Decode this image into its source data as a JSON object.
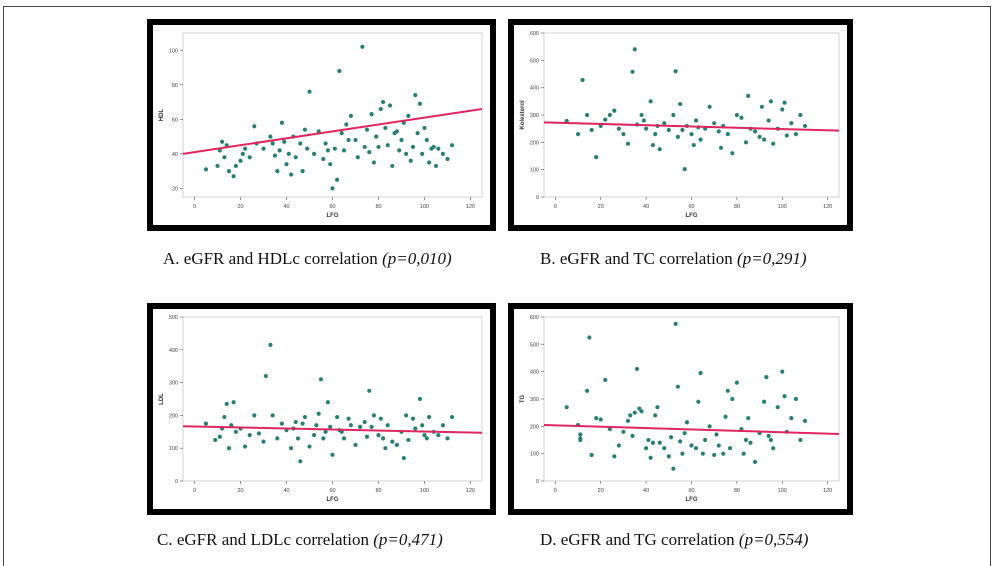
{
  "colors": {
    "point": "#2a7f74",
    "fit": "#e0265e",
    "axis": "#555555"
  },
  "chart_data": [
    {
      "type": "scatter",
      "xlabel": "LFG",
      "ylabel": "HDL",
      "xlim": [
        -5,
        125
      ],
      "ylim": [
        15,
        110
      ],
      "xticks": [
        "0",
        "20",
        "40",
        "60",
        "80",
        "100",
        "120"
      ],
      "xtick_values": [
        0,
        20,
        40,
        60,
        80,
        100,
        120
      ],
      "yticks": [
        "20",
        "40",
        "60",
        "80",
        "100"
      ],
      "ytick_values": [
        20,
        40,
        60,
        80,
        100
      ],
      "fit_line": {
        "x": [
          -5,
          125
        ],
        "y": [
          40,
          66
        ]
      },
      "points": [
        [
          5,
          31
        ],
        [
          10,
          33
        ],
        [
          11,
          42
        ],
        [
          12,
          47
        ],
        [
          13,
          38
        ],
        [
          14,
          45
        ],
        [
          15,
          30
        ],
        [
          17,
          27
        ],
        [
          18,
          33
        ],
        [
          20,
          36
        ],
        [
          21,
          40
        ],
        [
          22,
          43
        ],
        [
          24,
          38
        ],
        [
          26,
          56
        ],
        [
          27,
          46
        ],
        [
          30,
          43
        ],
        [
          33,
          50
        ],
        [
          34,
          46
        ],
        [
          35,
          39
        ],
        [
          36,
          30
        ],
        [
          37,
          42
        ],
        [
          38,
          58
        ],
        [
          39,
          47
        ],
        [
          40,
          34
        ],
        [
          41,
          40
        ],
        [
          42,
          28
        ],
        [
          43,
          50
        ],
        [
          44,
          38
        ],
        [
          46,
          46
        ],
        [
          47,
          30
        ],
        [
          48,
          54
        ],
        [
          49,
          43
        ],
        [
          50,
          76
        ],
        [
          52,
          40
        ],
        [
          54,
          53
        ],
        [
          56,
          37
        ],
        [
          57,
          46
        ],
        [
          58,
          42
        ],
        [
          59,
          34
        ],
        [
          60,
          20
        ],
        [
          61,
          43
        ],
        [
          62,
          25
        ],
        [
          63,
          88
        ],
        [
          64,
          52
        ],
        [
          65,
          42
        ],
        [
          66,
          57
        ],
        [
          67,
          48
        ],
        [
          68,
          62
        ],
        [
          70,
          48
        ],
        [
          71,
          38
        ],
        [
          73,
          102
        ],
        [
          74,
          44
        ],
        [
          75,
          54
        ],
        [
          76,
          41
        ],
        [
          77,
          63
        ],
        [
          78,
          35
        ],
        [
          79,
          50
        ],
        [
          80,
          44
        ],
        [
          81,
          66
        ],
        [
          82,
          70
        ],
        [
          83,
          55
        ],
        [
          84,
          45
        ],
        [
          85,
          68
        ],
        [
          86,
          33
        ],
        [
          87,
          52
        ],
        [
          88,
          53
        ],
        [
          89,
          42
        ],
        [
          90,
          48
        ],
        [
          91,
          58
        ],
        [
          92,
          40
        ],
        [
          93,
          62
        ],
        [
          94,
          36
        ],
        [
          95,
          44
        ],
        [
          96,
          74
        ],
        [
          97,
          52
        ],
        [
          98,
          69
        ],
        [
          99,
          40
        ],
        [
          100,
          55
        ],
        [
          101,
          48
        ],
        [
          102,
          35
        ],
        [
          103,
          43
        ],
        [
          104,
          44
        ],
        [
          105,
          33
        ],
        [
          106,
          43
        ],
        [
          108,
          40
        ],
        [
          110,
          37
        ],
        [
          112,
          45
        ]
      ]
    },
    {
      "type": "scatter",
      "xlabel": "LFG",
      "ylabel": "Kolesterol",
      "xlim": [
        -5,
        125
      ],
      "ylim": [
        0,
        600
      ],
      "xticks": [
        "0",
        "20",
        "40",
        "60",
        "80",
        "100",
        "120"
      ],
      "xtick_values": [
        0,
        20,
        40,
        60,
        80,
        100,
        120
      ],
      "yticks": [
        "0",
        "100",
        "200",
        "300",
        "400",
        "500",
        "600"
      ],
      "ytick_values": [
        0,
        100,
        200,
        300,
        400,
        500,
        600
      ],
      "fit_line": {
        "x": [
          -5,
          125
        ],
        "y": [
          273,
          243
        ]
      },
      "points": [
        [
          5,
          278
        ],
        [
          10,
          230
        ],
        [
          12,
          428
        ],
        [
          14,
          300
        ],
        [
          16,
          245
        ],
        [
          18,
          146
        ],
        [
          20,
          260
        ],
        [
          22,
          283
        ],
        [
          24,
          300
        ],
        [
          26,
          316
        ],
        [
          28,
          250
        ],
        [
          30,
          230
        ],
        [
          32,
          195
        ],
        [
          34,
          458
        ],
        [
          35,
          540
        ],
        [
          36,
          265
        ],
        [
          38,
          300
        ],
        [
          39,
          280
        ],
        [
          40,
          250
        ],
        [
          42,
          350
        ],
        [
          43,
          190
        ],
        [
          44,
          230
        ],
        [
          45,
          260
        ],
        [
          46,
          175
        ],
        [
          48,
          270
        ],
        [
          50,
          245
        ],
        [
          52,
          300
        ],
        [
          53,
          460
        ],
        [
          54,
          220
        ],
        [
          55,
          340
        ],
        [
          56,
          245
        ],
        [
          57,
          102
        ],
        [
          58,
          260
        ],
        [
          60,
          230
        ],
        [
          61,
          190
        ],
        [
          62,
          280
        ],
        [
          63,
          255
        ],
        [
          64,
          210
        ],
        [
          66,
          250
        ],
        [
          68,
          330
        ],
        [
          70,
          270
        ],
        [
          72,
          240
        ],
        [
          73,
          180
        ],
        [
          74,
          260
        ],
        [
          76,
          230
        ],
        [
          78,
          160
        ],
        [
          80,
          300
        ],
        [
          82,
          290
        ],
        [
          84,
          200
        ],
        [
          85,
          370
        ],
        [
          86,
          250
        ],
        [
          88,
          240
        ],
        [
          90,
          220
        ],
        [
          91,
          330
        ],
        [
          92,
          210
        ],
        [
          94,
          280
        ],
        [
          95,
          350
        ],
        [
          96,
          195
        ],
        [
          98,
          250
        ],
        [
          100,
          320
        ],
        [
          101,
          345
        ],
        [
          102,
          225
        ],
        [
          104,
          270
        ],
        [
          106,
          230
        ],
        [
          108,
          300
        ],
        [
          110,
          260
        ]
      ]
    },
    {
      "type": "scatter",
      "xlabel": "LFG",
      "ylabel": "LDL",
      "xlim": [
        -5,
        125
      ],
      "ylim": [
        0,
        500
      ],
      "xticks": [
        "0",
        "20",
        "40",
        "60",
        "80",
        "100",
        "120"
      ],
      "xtick_values": [
        0,
        20,
        40,
        60,
        80,
        100,
        120
      ],
      "yticks": [
        "0",
        "100",
        "200",
        "300",
        "400",
        "500"
      ],
      "ytick_values": [
        0,
        100,
        200,
        300,
        400,
        500
      ],
      "fit_line": {
        "x": [
          -5,
          125
        ],
        "y": [
          167,
          147
        ]
      },
      "points": [
        [
          5,
          175
        ],
        [
          9,
          125
        ],
        [
          11,
          135
        ],
        [
          12,
          160
        ],
        [
          13,
          195
        ],
        [
          14,
          235
        ],
        [
          15,
          100
        ],
        [
          16,
          170
        ],
        [
          17,
          240
        ],
        [
          18,
          150
        ],
        [
          20,
          160
        ],
        [
          22,
          105
        ],
        [
          24,
          140
        ],
        [
          26,
          200
        ],
        [
          28,
          145
        ],
        [
          30,
          120
        ],
        [
          31,
          320
        ],
        [
          33,
          415
        ],
        [
          34,
          200
        ],
        [
          36,
          130
        ],
        [
          38,
          175
        ],
        [
          40,
          155
        ],
        [
          42,
          100
        ],
        [
          43,
          160
        ],
        [
          44,
          180
        ],
        [
          45,
          130
        ],
        [
          46,
          60
        ],
        [
          47,
          175
        ],
        [
          48,
          195
        ],
        [
          50,
          105
        ],
        [
          52,
          140
        ],
        [
          53,
          170
        ],
        [
          54,
          205
        ],
        [
          55,
          310
        ],
        [
          56,
          130
        ],
        [
          57,
          150
        ],
        [
          58,
          240
        ],
        [
          59,
          165
        ],
        [
          60,
          80
        ],
        [
          62,
          195
        ],
        [
          63,
          155
        ],
        [
          64,
          150
        ],
        [
          65,
          130
        ],
        [
          67,
          190
        ],
        [
          68,
          170
        ],
        [
          70,
          110
        ],
        [
          72,
          165
        ],
        [
          74,
          180
        ],
        [
          75,
          135
        ],
        [
          76,
          275
        ],
        [
          77,
          165
        ],
        [
          78,
          200
        ],
        [
          80,
          140
        ],
        [
          81,
          190
        ],
        [
          82,
          130
        ],
        [
          83,
          100
        ],
        [
          84,
          170
        ],
        [
          86,
          120
        ],
        [
          88,
          110
        ],
        [
          90,
          150
        ],
        [
          91,
          70
        ],
        [
          92,
          200
        ],
        [
          93,
          125
        ],
        [
          95,
          190
        ],
        [
          96,
          160
        ],
        [
          98,
          250
        ],
        [
          99,
          170
        ],
        [
          100,
          140
        ],
        [
          101,
          130
        ],
        [
          102,
          195
        ],
        [
          104,
          150
        ],
        [
          106,
          140
        ],
        [
          108,
          170
        ],
        [
          110,
          130
        ],
        [
          112,
          195
        ]
      ]
    },
    {
      "type": "scatter",
      "xlabel": "LFG",
      "ylabel": "TG",
      "xlim": [
        -5,
        125
      ],
      "ylim": [
        0,
        600
      ],
      "xticks": [
        "0",
        "20",
        "40",
        "60",
        "80",
        "100",
        "120"
      ],
      "xtick_values": [
        0,
        20,
        40,
        60,
        80,
        100,
        120
      ],
      "yticks": [
        "0",
        "100",
        "200",
        "300",
        "400",
        "500",
        "600"
      ],
      "ytick_values": [
        0,
        100,
        200,
        300,
        400,
        500,
        600
      ],
      "fit_line": {
        "x": [
          -5,
          125
        ],
        "y": [
          205,
          172
        ]
      },
      "points": [
        [
          5,
          270
        ],
        [
          10,
          205
        ],
        [
          11,
          170
        ],
        [
          11,
          155
        ],
        [
          11,
          150
        ],
        [
          14,
          330
        ],
        [
          15,
          525
        ],
        [
          16,
          95
        ],
        [
          18,
          230
        ],
        [
          20,
          225
        ],
        [
          22,
          370
        ],
        [
          24,
          190
        ],
        [
          26,
          90
        ],
        [
          28,
          130
        ],
        [
          30,
          180
        ],
        [
          32,
          220
        ],
        [
          33,
          240
        ],
        [
          34,
          165
        ],
        [
          35,
          250
        ],
        [
          36,
          410
        ],
        [
          37,
          265
        ],
        [
          38,
          255
        ],
        [
          40,
          120
        ],
        [
          41,
          150
        ],
        [
          42,
          85
        ],
        [
          43,
          140
        ],
        [
          44,
          240
        ],
        [
          45,
          270
        ],
        [
          46,
          140
        ],
        [
          48,
          120
        ],
        [
          50,
          90
        ],
        [
          51,
          160
        ],
        [
          52,
          45
        ],
        [
          53,
          575
        ],
        [
          54,
          345
        ],
        [
          55,
          145
        ],
        [
          56,
          100
        ],
        [
          57,
          175
        ],
        [
          58,
          215
        ],
        [
          60,
          130
        ],
        [
          62,
          120
        ],
        [
          63,
          290
        ],
        [
          64,
          395
        ],
        [
          65,
          100
        ],
        [
          66,
          150
        ],
        [
          68,
          200
        ],
        [
          70,
          95
        ],
        [
          71,
          170
        ],
        [
          72,
          130
        ],
        [
          74,
          100
        ],
        [
          75,
          235
        ],
        [
          76,
          330
        ],
        [
          77,
          120
        ],
        [
          78,
          300
        ],
        [
          80,
          360
        ],
        [
          82,
          190
        ],
        [
          83,
          100
        ],
        [
          84,
          150
        ],
        [
          85,
          230
        ],
        [
          86,
          140
        ],
        [
          88,
          70
        ],
        [
          90,
          175
        ],
        [
          92,
          290
        ],
        [
          93,
          380
        ],
        [
          94,
          165
        ],
        [
          95,
          150
        ],
        [
          96,
          120
        ],
        [
          98,
          270
        ],
        [
          100,
          400
        ],
        [
          101,
          310
        ],
        [
          102,
          180
        ],
        [
          104,
          230
        ],
        [
          106,
          300
        ],
        [
          108,
          150
        ],
        [
          110,
          220
        ]
      ]
    }
  ],
  "captions": [
    {
      "text": "A. eGFR and HDLc correlation",
      "p": "(p=0,010)"
    },
    {
      "text": "B. eGFR and TC correlation",
      "p": "(p=0,291)"
    },
    {
      "text": "C. eGFR and LDLc correlation",
      "p": "(p=0,471)"
    },
    {
      "text": "D. eGFR and TG correlation",
      "p": "(p=0,554)"
    }
  ]
}
